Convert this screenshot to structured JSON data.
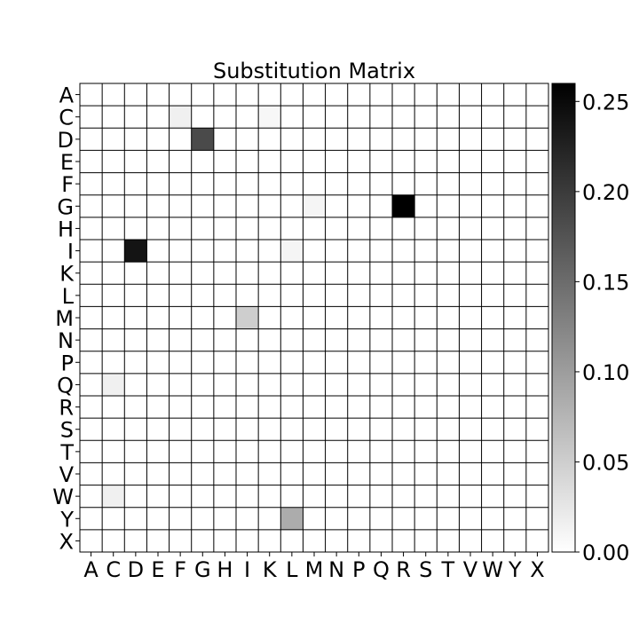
{
  "chart_data": {
    "type": "heatmap",
    "title": "Substitution Matrix",
    "xlabel": "",
    "ylabel": "",
    "rows": [
      "A",
      "C",
      "D",
      "E",
      "F",
      "G",
      "H",
      "I",
      "K",
      "L",
      "M",
      "N",
      "P",
      "Q",
      "R",
      "S",
      "T",
      "V",
      "W",
      "Y",
      "X"
    ],
    "columns": [
      "A",
      "C",
      "D",
      "E",
      "F",
      "G",
      "H",
      "I",
      "K",
      "L",
      "M",
      "N",
      "P",
      "Q",
      "R",
      "S",
      "T",
      "V",
      "W",
      "Y",
      "X"
    ],
    "colormap": "Greys",
    "colors": {
      "low": "#ffffff",
      "high": "#000000",
      "grid": "#000000"
    },
    "vmin": 0,
    "vmax": 0.26,
    "grid": true,
    "colorbar": {
      "position": "right",
      "ticks": [
        0.0,
        0.05,
        0.1,
        0.15,
        0.2,
        0.25
      ],
      "tick_labels": [
        "0.00",
        "0.05",
        "0.10",
        "0.15",
        "0.20",
        "0.25"
      ]
    },
    "cells": [
      {
        "row": "C",
        "col": "F",
        "value": 0.015
      },
      {
        "row": "C",
        "col": "K",
        "value": 0.008
      },
      {
        "row": "D",
        "col": "G",
        "value": 0.185
      },
      {
        "row": "G",
        "col": "M",
        "value": 0.01
      },
      {
        "row": "G",
        "col": "R",
        "value": 0.26
      },
      {
        "row": "I",
        "col": "D",
        "value": 0.24
      },
      {
        "row": "I",
        "col": "L",
        "value": 0.01
      },
      {
        "row": "M",
        "col": "I",
        "value": 0.05
      },
      {
        "row": "Q",
        "col": "C",
        "value": 0.015
      },
      {
        "row": "W",
        "col": "C",
        "value": 0.015
      },
      {
        "row": "Y",
        "col": "L",
        "value": 0.085
      }
    ]
  }
}
